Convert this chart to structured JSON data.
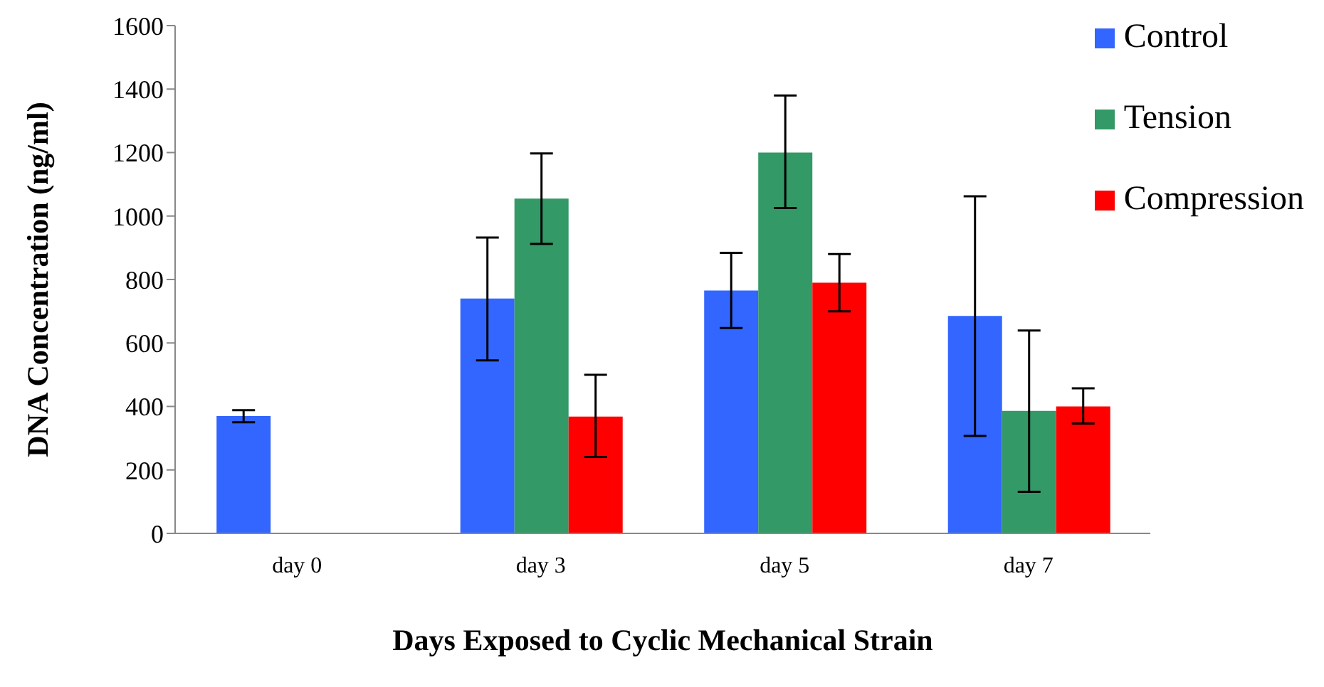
{
  "chart_data": {
    "type": "bar",
    "xlabel": "Days Exposed to Cyclic Mechanical Strain",
    "ylabel": "DNA Concentration (ng/ml)",
    "categories": [
      "day 0",
      "day 3",
      "day 5",
      "day 7"
    ],
    "series": [
      {
        "name": "Control",
        "color": "#3366ff",
        "values": [
          370,
          740,
          765,
          685
        ],
        "errors": [
          [
            350,
            388
          ],
          [
            545,
            932
          ],
          [
            647,
            884
          ],
          [
            307,
            1062
          ]
        ]
      },
      {
        "name": "Tension",
        "color": "#339966",
        "values": [
          0,
          1055,
          1200,
          386
        ],
        "errors": [
          null,
          [
            912,
            1197
          ],
          [
            1025,
            1380
          ],
          [
            131,
            639
          ]
        ]
      },
      {
        "name": "Compression",
        "color": "#ff0000",
        "values": [
          0,
          368,
          790,
          400
        ],
        "errors": [
          null,
          [
            241,
            500
          ],
          [
            700,
            880
          ],
          [
            346,
            457
          ]
        ]
      }
    ],
    "ylim": [
      0,
      1600
    ],
    "yticks": [
      0,
      200,
      400,
      600,
      800,
      1000,
      1200,
      1400,
      1600
    ],
    "grid": false,
    "legend": "top right"
  }
}
